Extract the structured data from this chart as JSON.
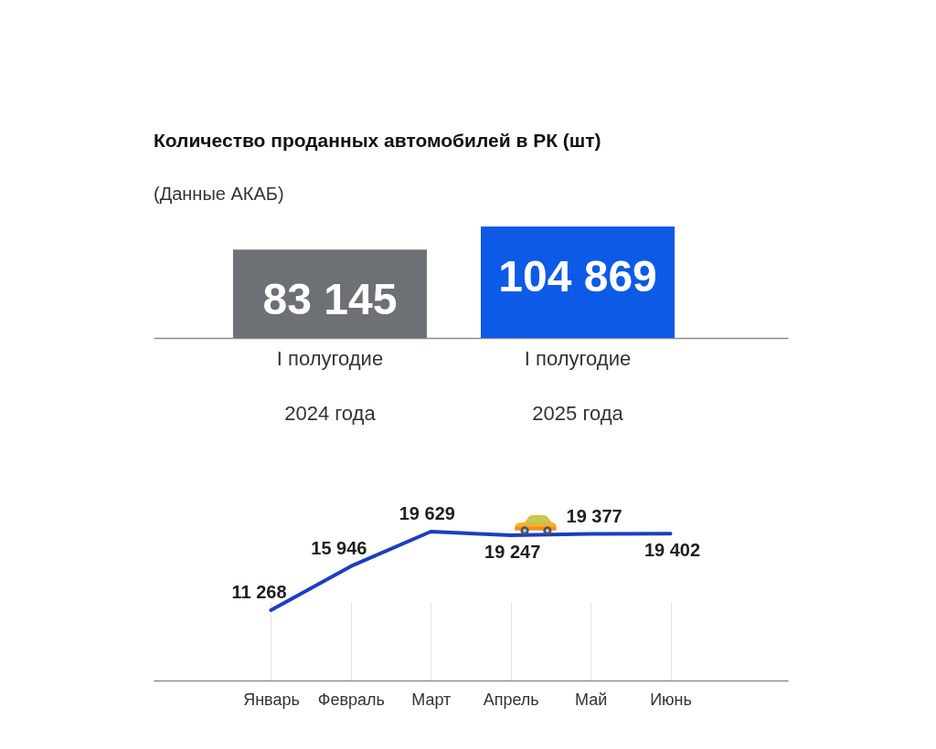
{
  "chart_data": [
    {
      "type": "bar",
      "title": "Количество проданных автомобилей в РК (шт)",
      "annotations": [
        "(Данные АКАБ)"
      ],
      "categories": [
        "I полугодие\n2024 года",
        "I полугодие\n2025 года"
      ],
      "values": [
        83145,
        104869
      ],
      "colors": [
        "#6d7074",
        "#0c5ae6"
      ],
      "value_labels": [
        "83 145",
        "104 869"
      ],
      "tick_labels": "x"
    },
    {
      "type": "line",
      "categories": [
        "Январь",
        "Февраль",
        "Март",
        "Апрель",
        "Май",
        "Июнь"
      ],
      "values": [
        11268,
        15946,
        19629,
        19247,
        19377,
        19402
      ],
      "color": "#1c3ec0",
      "value_labels": [
        "11 268",
        "15 946",
        "19 629",
        "19 247",
        "19 377",
        "19 402"
      ],
      "grid": "x",
      "tick_labels": "x"
    }
  ]
}
